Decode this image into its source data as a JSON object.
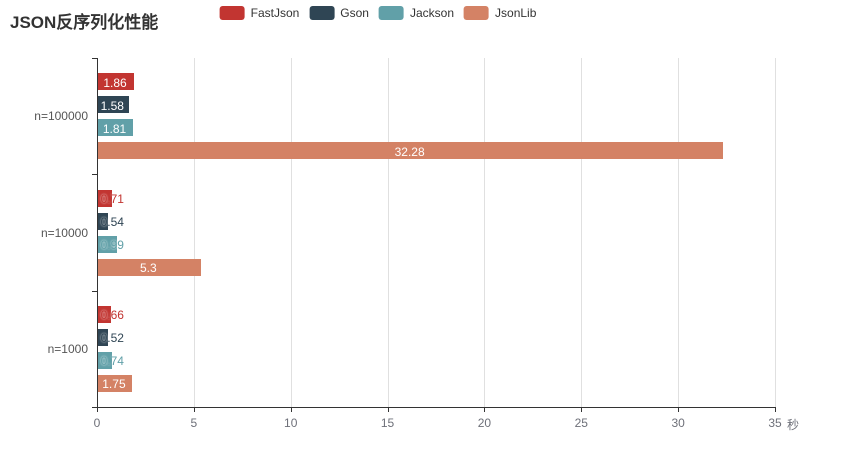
{
  "title": "JSON反序列化性能",
  "legend": {
    "items": [
      "FastJson",
      "Gson",
      "Jackson",
      "JsonLib"
    ]
  },
  "chart_data": {
    "type": "bar",
    "orientation": "horizontal",
    "title": "JSON反序列化性能",
    "xlabel": "秒",
    "ylabel": "",
    "xlim": [
      0,
      35
    ],
    "x_ticks": [
      0,
      5,
      10,
      15,
      20,
      25,
      30,
      35
    ],
    "grid": true,
    "legend_position": "top",
    "categories": [
      "n=100000",
      "n=10000",
      "n=1000"
    ],
    "series": [
      {
        "name": "FastJson",
        "color": "#c23531",
        "values": [
          1.86,
          0.71,
          0.66
        ]
      },
      {
        "name": "Gson",
        "color": "#2f4554",
        "values": [
          1.58,
          0.54,
          0.52
        ]
      },
      {
        "name": "Jackson",
        "color": "#61a0a8",
        "values": [
          1.81,
          0.99,
          0.74
        ]
      },
      {
        "name": "JsonLib",
        "color": "#d48265",
        "values": [
          32.28,
          5.3,
          1.75
        ]
      }
    ]
  }
}
